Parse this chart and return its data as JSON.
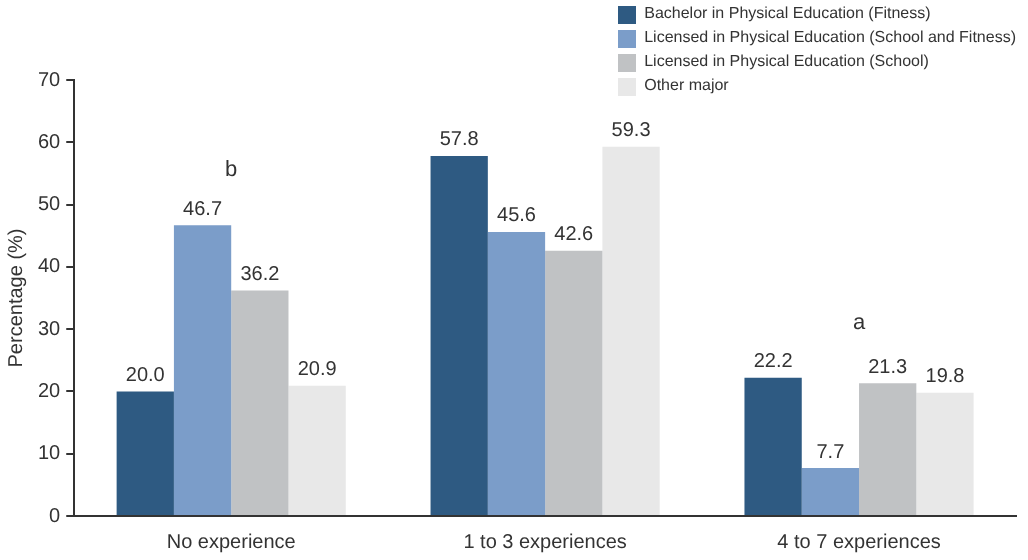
{
  "chart_data": {
    "type": "bar",
    "ylabel": "Percentage (%)",
    "categories": [
      "No experience",
      "1 to 3 experiences",
      "4 to 7 experiences"
    ],
    "series": [
      {
        "name": "Bachelor in Physical Education (Fitness)",
        "color": "#2e5a82",
        "values": [
          20.0,
          57.8,
          22.2
        ],
        "value_labels": [
          "20.0",
          "57.8",
          "22.2"
        ]
      },
      {
        "name": "Licensed in Physical Education (School and Fitness)",
        "color": "#7b9dc9",
        "values": [
          46.7,
          45.6,
          7.7
        ],
        "value_labels": [
          "46.7",
          "45.6",
          "7.7"
        ]
      },
      {
        "name": "Licensed in Physical Education (School)",
        "color": "#c0c2c4",
        "values": [
          36.2,
          42.6,
          21.3
        ],
        "value_labels": [
          "36.2",
          "42.6",
          "21.3"
        ]
      },
      {
        "name": "Other major",
        "color": "#e8e8e8",
        "values": [
          20.9,
          59.3,
          19.8
        ],
        "value_labels": [
          "20.9",
          "59.3",
          "19.8"
        ]
      }
    ],
    "ylim": [
      0,
      70
    ],
    "yticks": [
      0,
      10,
      20,
      30,
      40,
      50,
      60,
      70
    ],
    "grid": false,
    "legend": "top right",
    "annotations": [
      {
        "text": "b",
        "x": "No experience",
        "y": 46.7
      },
      {
        "text": "a",
        "x": "4 to 7 experiences",
        "y": 22.2
      }
    ]
  }
}
